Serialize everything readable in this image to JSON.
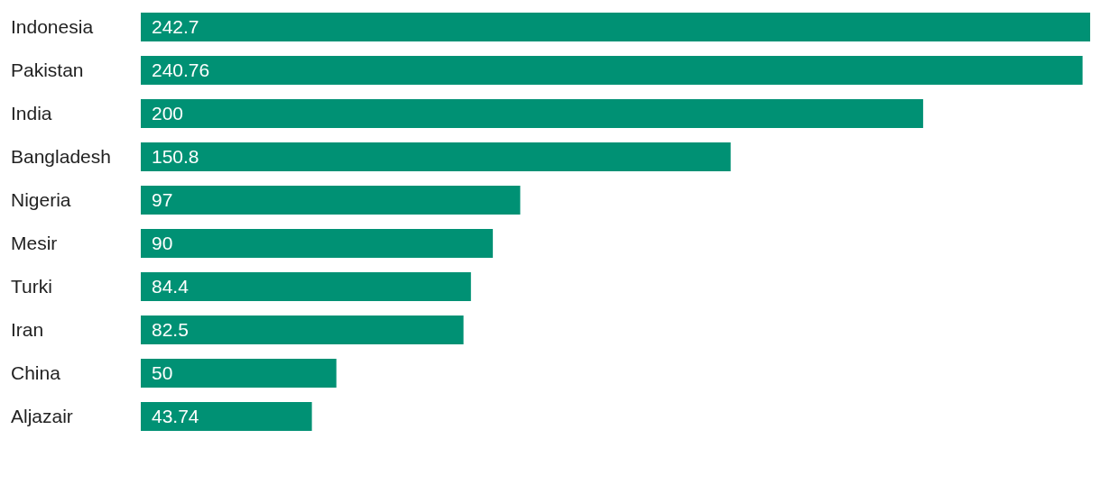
{
  "chart_data": {
    "type": "bar",
    "orientation": "horizontal",
    "categories": [
      "Indonesia",
      "Pakistan",
      "India",
      "Bangladesh",
      "Nigeria",
      "Mesir",
      "Turki",
      "Iran",
      "China",
      "Aljazair"
    ],
    "values": [
      242.7,
      240.76,
      200,
      150.8,
      97,
      90,
      84.4,
      82.5,
      50,
      43.74
    ],
    "color": "#009174",
    "data_labels": true
  }
}
